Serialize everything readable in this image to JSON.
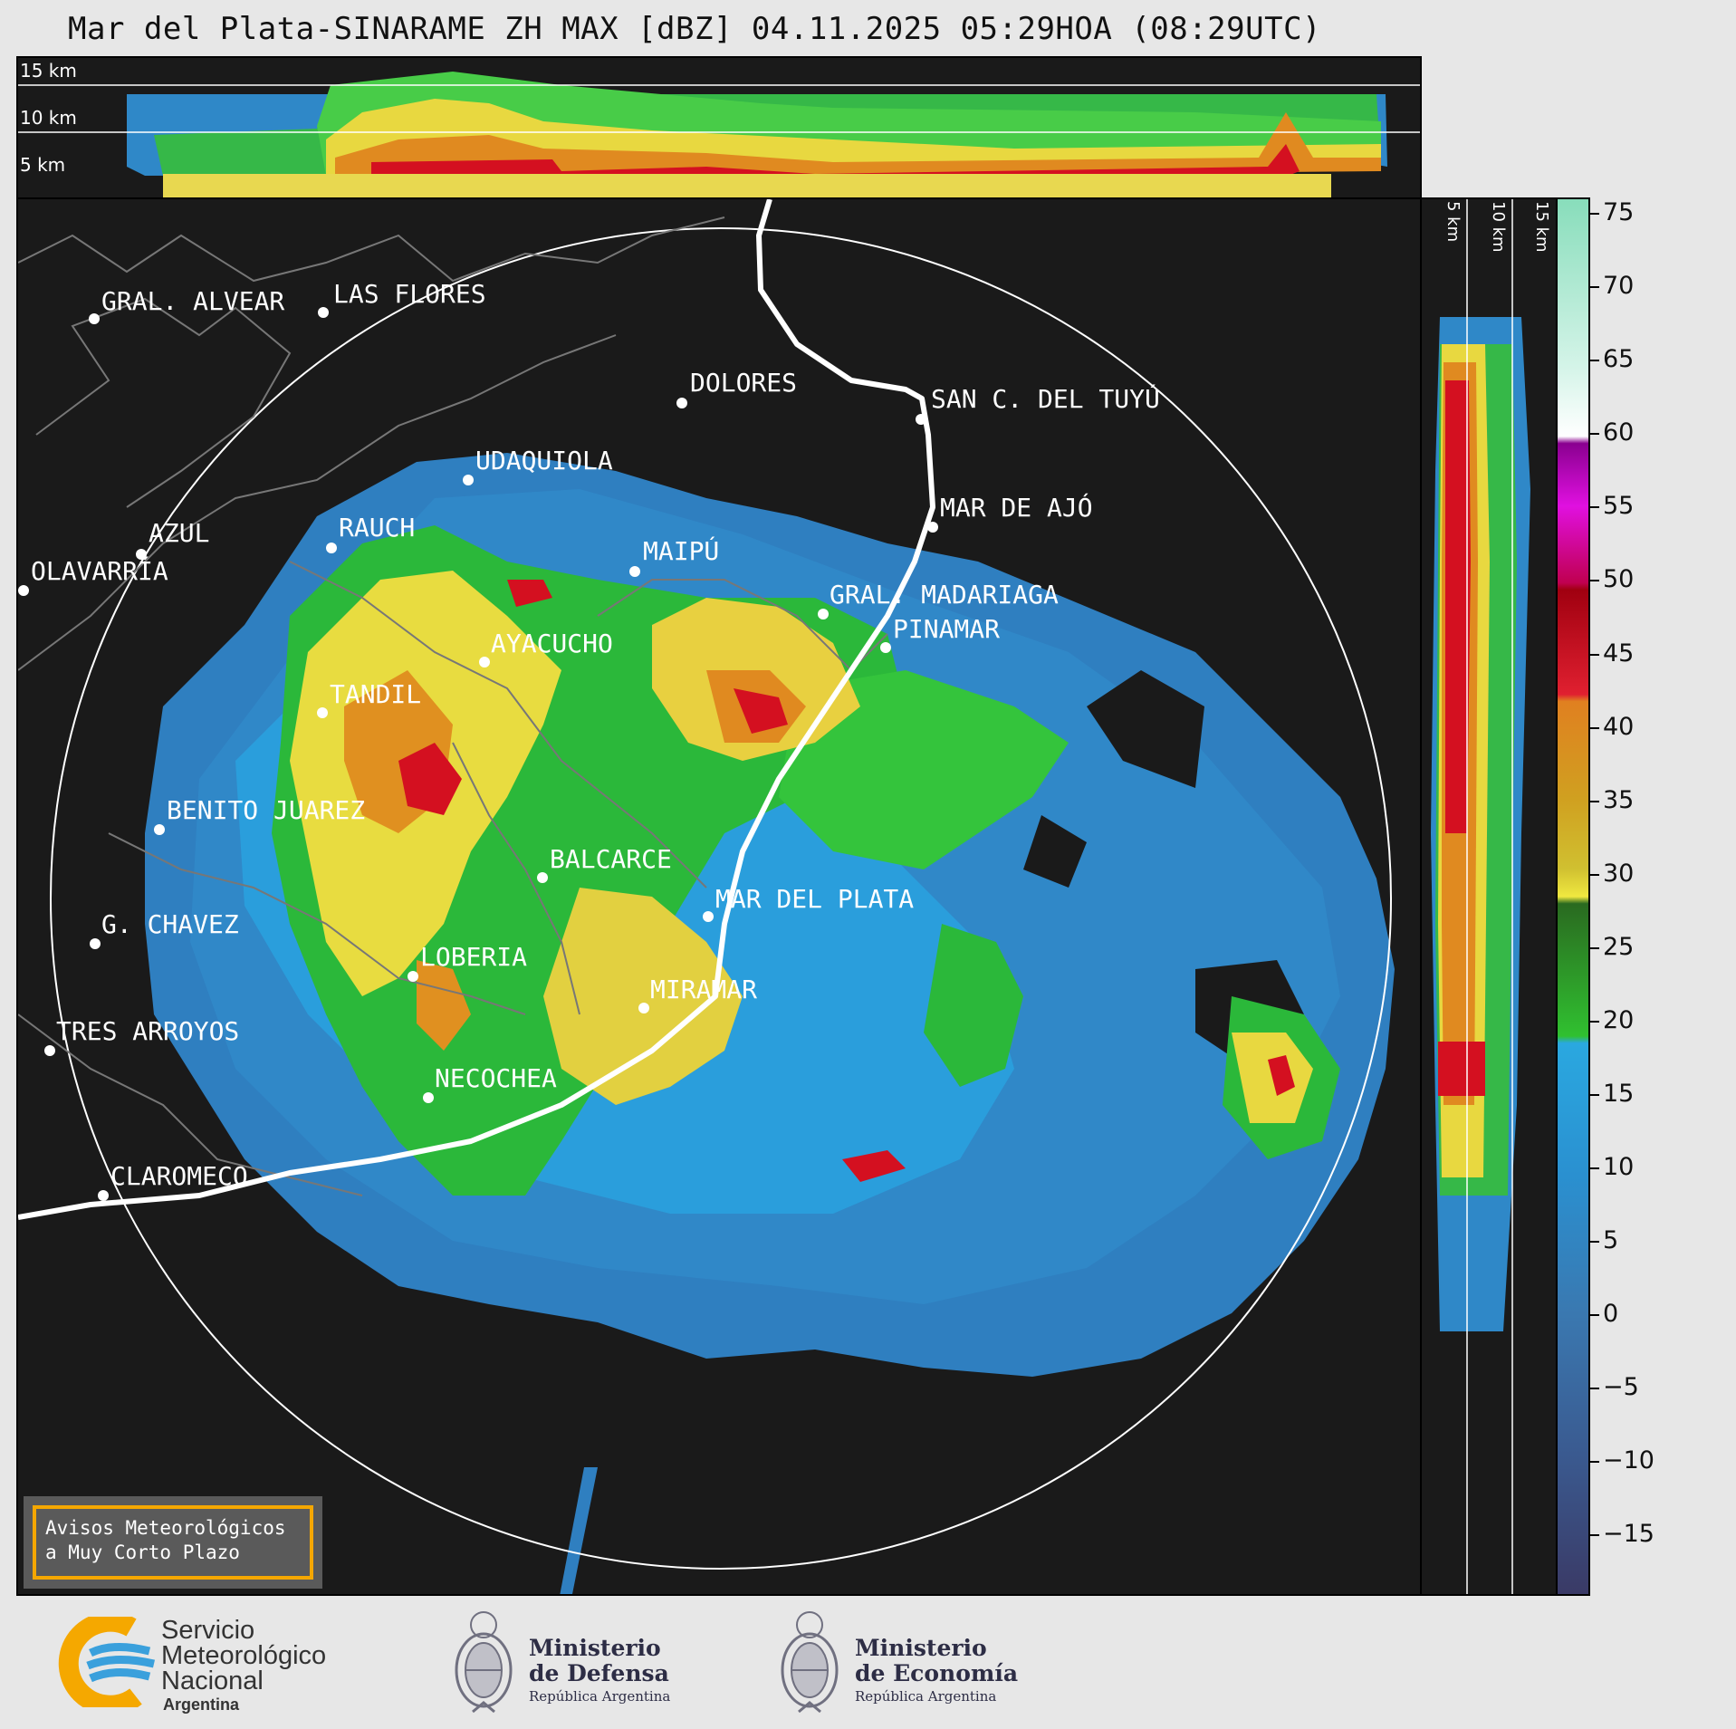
{
  "title": "Mar del Plata-SINARAME ZH MAX [dBZ] 04.11.2025 05:29HOA (08:29UTC)",
  "top_panel": {
    "altitude_labels": [
      "15 km",
      "10 km",
      "5 km"
    ]
  },
  "side_panel": {
    "altitude_labels": [
      "5 km",
      "10 km",
      "15 km"
    ]
  },
  "map": {
    "cities": [
      {
        "name": "GRAL. ALVEAR"
      },
      {
        "name": "LAS FLORES"
      },
      {
        "name": "DOLORES"
      },
      {
        "name": "SAN C. DEL TUYÚ"
      },
      {
        "name": "UDAQUIOLA"
      },
      {
        "name": "MAR DE AJÓ"
      },
      {
        "name": "AZUL"
      },
      {
        "name": "RAUCH"
      },
      {
        "name": "MAIPÚ"
      },
      {
        "name": "OLAVARRÍA"
      },
      {
        "name": "GRAL. MADARIAGA"
      },
      {
        "name": "PINAMAR"
      },
      {
        "name": "AYACUCHO"
      },
      {
        "name": "TANDIL"
      },
      {
        "name": "BENITO JUAREZ"
      },
      {
        "name": "BALCARCE"
      },
      {
        "name": "MAR DEL PLATA"
      },
      {
        "name": "G. CHAVEZ"
      },
      {
        "name": "LOBERIA"
      },
      {
        "name": "MIRAMAR"
      },
      {
        "name": "TRES ARROYOS"
      },
      {
        "name": "NECOCHEA"
      },
      {
        "name": "CLAROMECO"
      }
    ]
  },
  "colorbar": {
    "ticks": [
      "75",
      "70",
      "65",
      "60",
      "55",
      "50",
      "45",
      "40",
      "35",
      "30",
      "25",
      "20",
      "15",
      "10",
      "5",
      "0",
      "−5",
      "−10",
      "−15"
    ],
    "min": -19,
    "max": 76,
    "colors": {
      "low": "#3a3a66",
      "blue_mid": "#3a7ab8",
      "blue_high": "#2aa8e0",
      "green": "#30c030",
      "yellow": "#f0e040",
      "orange": "#e09020",
      "red": "#d01020",
      "magenta": "#e010e0",
      "white": "#ffffff",
      "mint": "#88ddbb"
    }
  },
  "avisos": {
    "line1": "Avisos Meteorológicos",
    "line2": "a Muy Corto Plazo"
  },
  "footer": {
    "smn": {
      "line1": "Servicio",
      "line2": "Meteorológico",
      "line3": "Nacional",
      "line4": "Argentina"
    },
    "defensa": {
      "line1": "Ministerio",
      "line2": "de Defensa",
      "line3": "República Argentina"
    },
    "economia": {
      "line1": "Ministerio",
      "line2": "de Economía",
      "line3": "República Argentina"
    }
  }
}
